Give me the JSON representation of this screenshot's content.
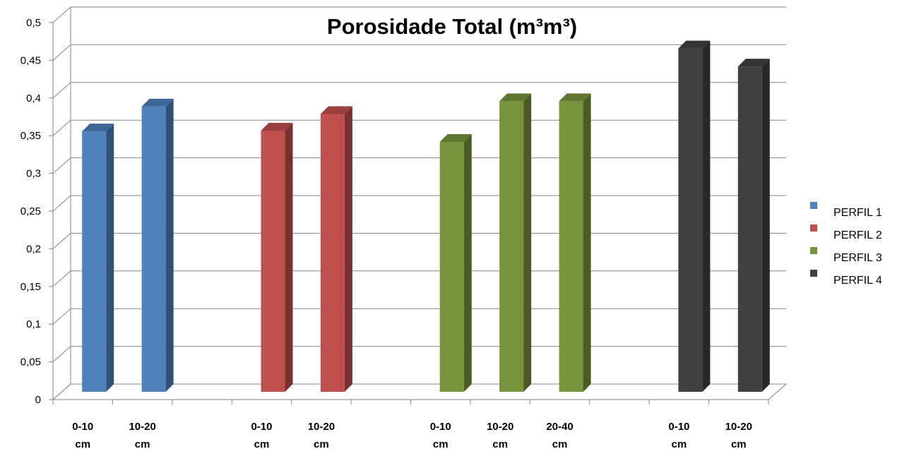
{
  "chart_data": {
    "type": "bar",
    "title": "Porosidade Total (m³m³)",
    "xlabel": "",
    "ylabel": "",
    "ylim": [
      0,
      0.5
    ],
    "yticks": [
      "0",
      "0,05",
      "0,1",
      "0,15",
      "0,2",
      "0,25",
      "0,3",
      "0,35",
      "0,4",
      "0,45",
      "0,5"
    ],
    "grid": true,
    "legend_position": "right",
    "categories": [
      {
        "line1": "0-10",
        "line2": "cm"
      },
      {
        "line1": "10-20",
        "line2": "cm"
      },
      {
        "line1": "",
        "line2": ""
      },
      {
        "line1": "0-10",
        "line2": "cm"
      },
      {
        "line1": "10-20",
        "line2": "cm"
      },
      {
        "line1": "",
        "line2": ""
      },
      {
        "line1": "0-10",
        "line2": "cm"
      },
      {
        "line1": "10-20",
        "line2": "cm"
      },
      {
        "line1": "20-40",
        "line2": "cm"
      },
      {
        "line1": "",
        "line2": ""
      },
      {
        "line1": "0-10",
        "line2": "cm"
      },
      {
        "line1": "10-20",
        "line2": "cm"
      }
    ],
    "series": [
      {
        "name": "PERFIL 1",
        "color": "#4F81BD",
        "values": [
          0.352,
          0.385,
          null,
          null,
          null,
          null,
          null,
          null,
          null,
          null,
          null,
          null
        ]
      },
      {
        "name": "PERFIL 2",
        "color": "#C0504D",
        "values": [
          null,
          null,
          null,
          0.353,
          0.375,
          null,
          null,
          null,
          null,
          null,
          null,
          null
        ]
      },
      {
        "name": "PERFIL 3",
        "color": "#77933C",
        "values": [
          null,
          null,
          null,
          null,
          null,
          null,
          0.338,
          0.392,
          0.392,
          null,
          null,
          null
        ]
      },
      {
        "name": "PERFIL 4",
        "color": "#404040",
        "values": [
          null,
          null,
          null,
          null,
          null,
          null,
          null,
          null,
          null,
          null,
          0.462,
          0.438
        ]
      }
    ]
  }
}
